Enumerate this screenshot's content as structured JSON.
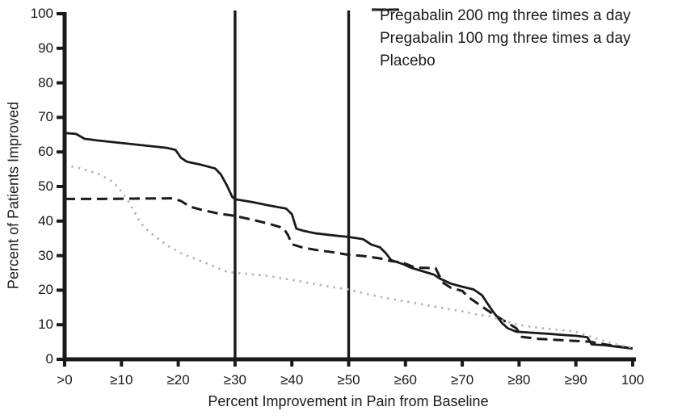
{
  "chart_data": {
    "type": "line",
    "title": "",
    "xlabel": "Percent Improvement in Pain from Baseline",
    "ylabel": "Percent of Patients Improved",
    "xlim": [
      0,
      100
    ],
    "ylim": [
      0,
      100
    ],
    "grid": false,
    "legend_position": "top-right",
    "x_ticks": {
      "values": [
        0,
        10,
        20,
        30,
        40,
        50,
        60,
        70,
        80,
        90,
        100
      ],
      "labels": [
        ">0",
        "≥10",
        "≥20",
        "≥30",
        "≥40",
        "≥50",
        "≥60",
        "≥70",
        "≥80",
        "≥90",
        "100"
      ]
    },
    "y_ticks": {
      "values": [
        0,
        10,
        20,
        30,
        40,
        50,
        60,
        70,
        80,
        90,
        100
      ],
      "labels": [
        "0",
        "10",
        "20",
        "30",
        "40",
        "50",
        "60",
        "70",
        "80",
        "90",
        "100"
      ]
    },
    "reference_lines_x": [
      30,
      50
    ],
    "series": [
      {
        "name": "Pregabalin 200 mg three times a day",
        "style": "solid",
        "color": "#1a1a1a",
        "points": [
          [
            0,
            65.5
          ],
          [
            2,
            65.2
          ],
          [
            3.5,
            63.8
          ],
          [
            6,
            63.3
          ],
          [
            10,
            62.6
          ],
          [
            14,
            61.9
          ],
          [
            18,
            61.2
          ],
          [
            19.5,
            60.6
          ],
          [
            20.5,
            58.3
          ],
          [
            21.5,
            57.2
          ],
          [
            24,
            56.3
          ],
          [
            26.5,
            55.2
          ],
          [
            27.5,
            53.5
          ],
          [
            28.5,
            50.5
          ],
          [
            29.5,
            47
          ],
          [
            30,
            46.3
          ],
          [
            33,
            45.5
          ],
          [
            36,
            44.5
          ],
          [
            39,
            43.6
          ],
          [
            40,
            42
          ],
          [
            40.8,
            37.8
          ],
          [
            42,
            37.2
          ],
          [
            44,
            36.5
          ],
          [
            47,
            35.9
          ],
          [
            50,
            35.4
          ],
          [
            52.5,
            34.8
          ],
          [
            54,
            33.2
          ],
          [
            55.5,
            32.4
          ],
          [
            56.5,
            30.8
          ],
          [
            57.5,
            28.7
          ],
          [
            59.5,
            27.6
          ],
          [
            61,
            26.5
          ],
          [
            63,
            25.5
          ],
          [
            65,
            24.5
          ],
          [
            66,
            23.4
          ],
          [
            68,
            21.9
          ],
          [
            70,
            21
          ],
          [
            72,
            20.2
          ],
          [
            73.5,
            18.5
          ],
          [
            74.5,
            16
          ],
          [
            75.5,
            13.6
          ],
          [
            77,
            10.5
          ],
          [
            78,
            9
          ],
          [
            79.5,
            8
          ],
          [
            82,
            7.7
          ],
          [
            85,
            7.4
          ],
          [
            88,
            7
          ],
          [
            90,
            6.8
          ],
          [
            92,
            6.4
          ],
          [
            92.8,
            4.3
          ],
          [
            95,
            4.1
          ],
          [
            97,
            3.7
          ],
          [
            100,
            3.1
          ]
        ]
      },
      {
        "name": "Pregabalin 100 mg three times a day",
        "style": "dashed",
        "color": "#1a1a1a",
        "points": [
          [
            0,
            46.4
          ],
          [
            6,
            46.4
          ],
          [
            12,
            46.5
          ],
          [
            19,
            46.6
          ],
          [
            20.5,
            45.8
          ],
          [
            22,
            44.2
          ],
          [
            24,
            43.3
          ],
          [
            27,
            42.2
          ],
          [
            30,
            41.5
          ],
          [
            33,
            40.4
          ],
          [
            36,
            39.2
          ],
          [
            38.5,
            38
          ],
          [
            39.3,
            36
          ],
          [
            40,
            33.3
          ],
          [
            42,
            32.3
          ],
          [
            44.5,
            31.6
          ],
          [
            47.5,
            30.9
          ],
          [
            50,
            30.2
          ],
          [
            52.5,
            29.9
          ],
          [
            55.5,
            29.2
          ],
          [
            57.5,
            28.4
          ],
          [
            59.5,
            28
          ],
          [
            61,
            27
          ],
          [
            62,
            26.5
          ],
          [
            65.3,
            26.4
          ],
          [
            66.5,
            22.3
          ],
          [
            68,
            20.7
          ],
          [
            70,
            19.8
          ],
          [
            71,
            18.1
          ],
          [
            73,
            15.8
          ],
          [
            75.5,
            13
          ],
          [
            77.5,
            11
          ],
          [
            79.5,
            9
          ],
          [
            80.5,
            6.5
          ],
          [
            83.5,
            5.9
          ],
          [
            88,
            5.5
          ],
          [
            92.5,
            5.1
          ],
          [
            95.5,
            4.2
          ],
          [
            100,
            3.1
          ]
        ]
      },
      {
        "name": "Placebo",
        "style": "dotted",
        "color": "#b3b3b3",
        "points": [
          [
            0,
            56.1
          ],
          [
            2,
            55.6
          ],
          [
            4,
            54.6
          ],
          [
            6,
            53.6
          ],
          [
            8,
            51.9
          ],
          [
            9,
            50.5
          ],
          [
            10,
            48.5
          ],
          [
            11,
            46.3
          ],
          [
            12,
            43.5
          ],
          [
            13,
            40.5
          ],
          [
            14,
            38.2
          ],
          [
            15,
            36.8
          ],
          [
            16,
            35.4
          ],
          [
            17,
            34.3
          ],
          [
            18,
            33
          ],
          [
            19,
            32
          ],
          [
            20,
            31.2
          ],
          [
            21,
            30.3
          ],
          [
            22.5,
            29.4
          ],
          [
            24,
            28.4
          ],
          [
            25.5,
            27.5
          ],
          [
            27,
            26.3
          ],
          [
            28.5,
            25.4
          ],
          [
            30,
            25
          ],
          [
            33,
            24.6
          ],
          [
            36,
            24.1
          ],
          [
            38,
            23.5
          ],
          [
            41,
            22.7
          ],
          [
            44,
            21.8
          ],
          [
            47,
            20.9
          ],
          [
            50,
            20.2
          ],
          [
            53,
            19
          ],
          [
            56,
            17.9
          ],
          [
            59,
            17
          ],
          [
            62,
            16.2
          ],
          [
            65,
            15.3
          ],
          [
            68,
            14.4
          ],
          [
            70,
            13.9
          ],
          [
            72.5,
            13
          ],
          [
            75,
            12.4
          ],
          [
            77,
            11.3
          ],
          [
            79,
            10.3
          ],
          [
            81,
            9.7
          ],
          [
            84,
            9
          ],
          [
            87,
            8.5
          ],
          [
            90,
            8
          ],
          [
            92,
            6.9
          ],
          [
            94,
            5.8
          ],
          [
            96,
            4.8
          ],
          [
            98,
            4
          ],
          [
            100,
            3.4
          ]
        ]
      }
    ]
  },
  "colors": {
    "axis": "#1a1a1a",
    "background": "#ffffff",
    "legend_dotted_marker": "#3c3c3c"
  }
}
